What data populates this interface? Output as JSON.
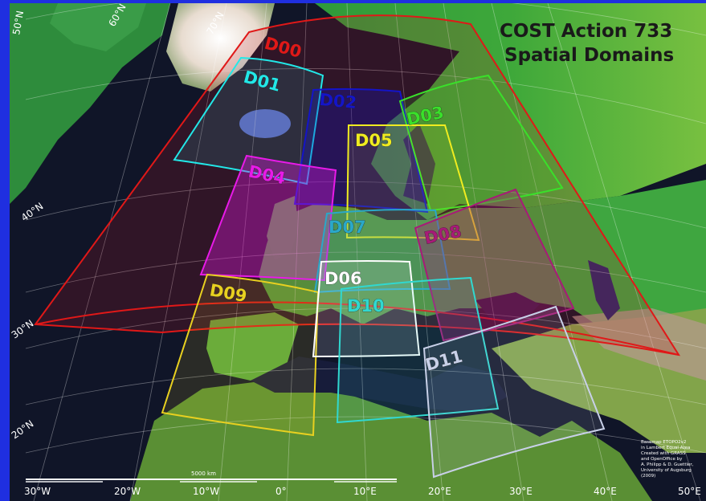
{
  "title": {
    "line1": "COST Action 733",
    "line2": "Spatial Domains"
  },
  "domains": [
    {
      "id": "D00",
      "color": "#e01818"
    },
    {
      "id": "D01",
      "color": "#22e8e8"
    },
    {
      "id": "D02",
      "color": "#1414c8"
    },
    {
      "id": "D03",
      "color": "#3ae02a"
    },
    {
      "id": "D04",
      "color": "#e81ae8"
    },
    {
      "id": "D05",
      "color": "#f0ec20"
    },
    {
      "id": "D06",
      "color": "#ffffff"
    },
    {
      "id": "D07",
      "color": "#2aa8c8"
    },
    {
      "id": "D08",
      "color": "#a81a78"
    },
    {
      "id": "D09",
      "color": "#e8d020"
    },
    {
      "id": "D10",
      "color": "#30d8d0"
    },
    {
      "id": "D11",
      "color": "#c8d0e8"
    }
  ],
  "graticule": {
    "longitudes": [
      "30°W",
      "20°W",
      "10°W",
      "0°",
      "10°E",
      "20°E",
      "30°E",
      "40°E",
      "50°E"
    ],
    "latitudes": [
      "20°N",
      "30°N",
      "40°N",
      "50°N"
    ],
    "top_longitudes": [
      "60°N",
      "70°N"
    ]
  },
  "scale_bar": {
    "label": "5000 km"
  },
  "credit": [
    "Basemap ETOPO2v2",
    "in Lambert Equal Area",
    "Created with GRASS",
    "and OpenOffice by",
    "A. Philipp & D. Guettler,",
    "University of Augsburg",
    "(2009)"
  ]
}
